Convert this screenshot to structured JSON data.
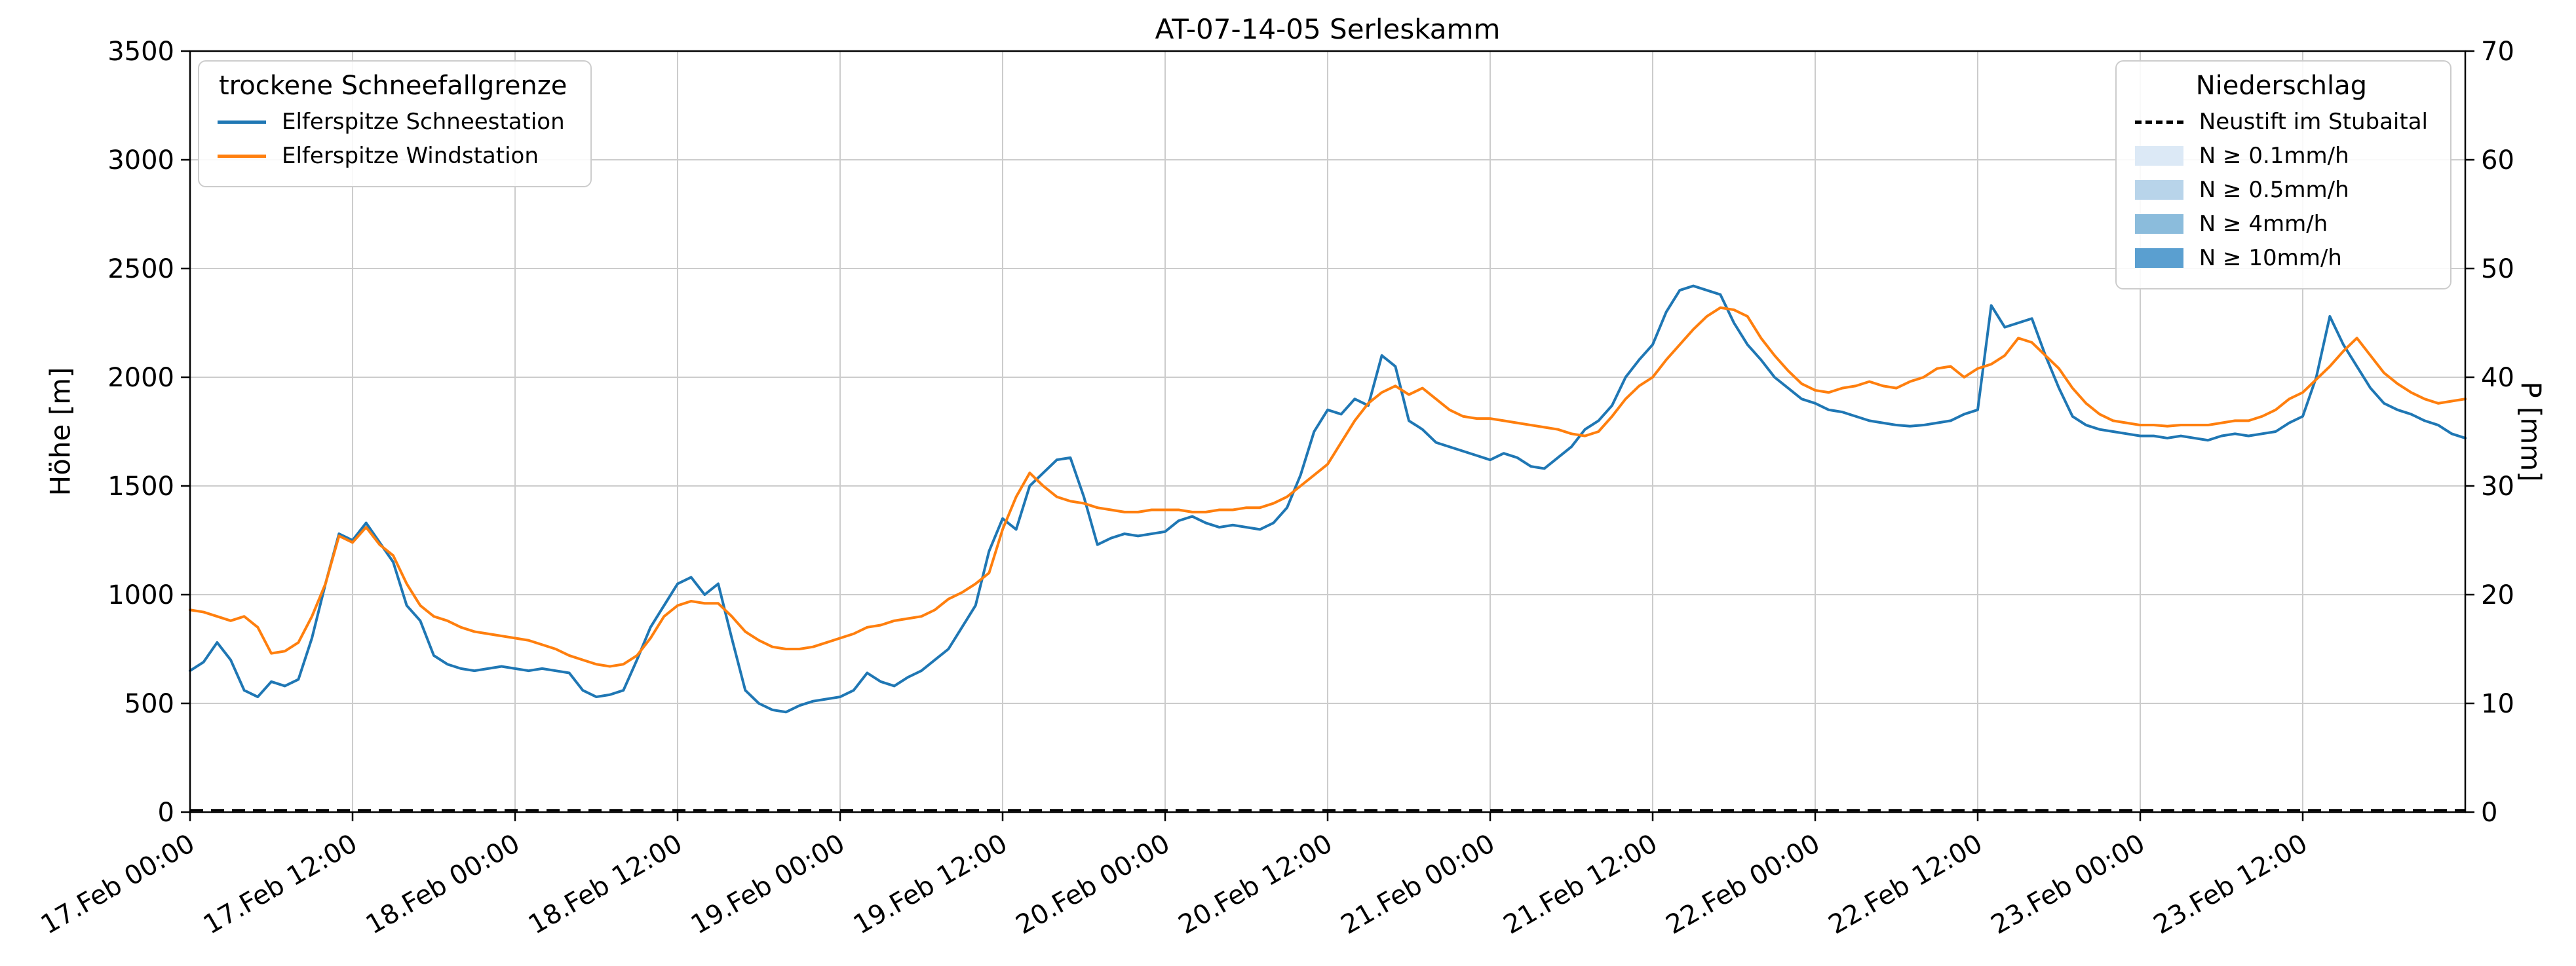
{
  "chart_data": {
    "type": "line",
    "title": "AT-07-14-05 Serleskamm",
    "xlabel": "",
    "ylabel_left": "Höhe [m]",
    "ylabel_right": "P [mm]",
    "grid": true,
    "y_left": {
      "min": 0,
      "max": 3500,
      "step": 500
    },
    "y_right": {
      "min": 0,
      "max": 70,
      "step": 10
    },
    "x": {
      "min_hour": 0,
      "max_hour": 168,
      "tick_step_hours": 12,
      "resolution_hours": 1,
      "tick_labels": [
        "17.Feb 00:00",
        "17.Feb 12:00",
        "18.Feb 00:00",
        "18.Feb 12:00",
        "19.Feb 00:00",
        "19.Feb 12:00",
        "20.Feb 00:00",
        "20.Feb 12:00",
        "21.Feb 00:00",
        "21.Feb 12:00",
        "22.Feb 00:00",
        "22.Feb 12:00",
        "23.Feb 00:00",
        "23.Feb 12:00"
      ]
    },
    "series": [
      {
        "name": "Elferspitze Schneestation",
        "color": "#1f77b4",
        "axis": "left",
        "values": [
          650,
          690,
          780,
          700,
          560,
          530,
          600,
          580,
          610,
          800,
          1050,
          1280,
          1250,
          1330,
          1240,
          1150,
          950,
          880,
          720,
          680,
          660,
          650,
          660,
          670,
          660,
          650,
          660,
          650,
          640,
          560,
          530,
          540,
          560,
          700,
          850,
          950,
          1050,
          1080,
          1000,
          1050,
          800,
          560,
          500,
          470,
          460,
          490,
          510,
          520,
          530,
          560,
          640,
          600,
          580,
          620,
          650,
          700,
          750,
          850,
          950,
          1200,
          1350,
          1300,
          1500,
          1560,
          1620,
          1630,
          1450,
          1230,
          1260,
          1280,
          1270,
          1280,
          1290,
          1340,
          1360,
          1330,
          1310,
          1320,
          1310,
          1300,
          1330,
          1400,
          1550,
          1750,
          1850,
          1830,
          1900,
          1870,
          2100,
          2050,
          1800,
          1760,
          1700,
          1680,
          1660,
          1640,
          1620,
          1650,
          1630,
          1590,
          1580,
          1630,
          1680,
          1760,
          1800,
          1870,
          2000,
          2080,
          2150,
          2300,
          2400,
          2420,
          2400,
          2380,
          2250,
          2150,
          2080,
          2000,
          1950,
          1900,
          1880,
          1850,
          1840,
          1820,
          1800,
          1790,
          1780,
          1775,
          1780,
          1790,
          1800,
          1830,
          1850,
          2330,
          2230,
          2250,
          2270,
          2100,
          1950,
          1820,
          1780,
          1760,
          1750,
          1740,
          1730,
          1730,
          1720,
          1730,
          1720,
          1710,
          1730,
          1740,
          1730,
          1740,
          1750,
          1790,
          1820,
          2000,
          2280,
          2150,
          2050,
          1950,
          1880,
          1850,
          1830,
          1800,
          1780,
          1740,
          1720
        ]
      },
      {
        "name": "Elferspitze Windstation",
        "color": "#ff7f0e",
        "axis": "left",
        "values": [
          930,
          920,
          900,
          880,
          900,
          850,
          730,
          740,
          780,
          900,
          1050,
          1270,
          1240,
          1310,
          1230,
          1180,
          1050,
          950,
          900,
          880,
          850,
          830,
          820,
          810,
          800,
          790,
          770,
          750,
          720,
          700,
          680,
          670,
          680,
          720,
          800,
          900,
          950,
          970,
          960,
          960,
          900,
          830,
          790,
          760,
          750,
          750,
          760,
          780,
          800,
          820,
          850,
          860,
          880,
          890,
          900,
          930,
          980,
          1010,
          1050,
          1100,
          1300,
          1450,
          1560,
          1500,
          1450,
          1430,
          1420,
          1400,
          1390,
          1380,
          1380,
          1390,
          1390,
          1390,
          1380,
          1380,
          1390,
          1390,
          1400,
          1400,
          1420,
          1450,
          1500,
          1550,
          1600,
          1700,
          1800,
          1880,
          1930,
          1960,
          1920,
          1950,
          1900,
          1850,
          1820,
          1810,
          1810,
          1800,
          1790,
          1780,
          1770,
          1760,
          1740,
          1730,
          1750,
          1820,
          1900,
          1960,
          2000,
          2080,
          2150,
          2220,
          2280,
          2320,
          2310,
          2280,
          2180,
          2100,
          2030,
          1970,
          1940,
          1930,
          1950,
          1960,
          1980,
          1960,
          1950,
          1980,
          2000,
          2040,
          2050,
          2000,
          2040,
          2060,
          2100,
          2180,
          2160,
          2100,
          2040,
          1950,
          1880,
          1830,
          1800,
          1790,
          1780,
          1780,
          1775,
          1780,
          1780,
          1780,
          1790,
          1800,
          1800,
          1820,
          1850,
          1900,
          1930,
          1990,
          2050,
          2120,
          2180,
          2100,
          2020,
          1970,
          1930,
          1900,
          1880,
          1890,
          1900
        ]
      },
      {
        "name": "Neustift im Stubaital",
        "color": "#000000",
        "style": "dashed",
        "axis": "right",
        "values_constant": 0
      }
    ],
    "legend_left": {
      "title": "trockene Schneefallgrenze",
      "items": [
        {
          "label": "Elferspitze Schneestation",
          "swatch": "line",
          "color": "#1f77b4"
        },
        {
          "label": "Elferspitze Windstation",
          "swatch": "line",
          "color": "#ff7f0e"
        }
      ]
    },
    "legend_right": {
      "title": "Niederschlag",
      "items": [
        {
          "label": "Neustift im Stubaital",
          "swatch": "dashed-line",
          "color": "#000000"
        },
        {
          "label": "N ≥ 0.1mm/h",
          "swatch": "patch",
          "color": "#dce9f6"
        },
        {
          "label": "N ≥ 0.5mm/h",
          "swatch": "patch",
          "color": "#b8d4ea"
        },
        {
          "label": "N ≥ 4mm/h",
          "swatch": "patch",
          "color": "#8bbcdc"
        },
        {
          "label": "N ≥ 10mm/h",
          "swatch": "patch",
          "color": "#5a9fd0"
        }
      ]
    },
    "colors": {
      "grid": "#cccccc",
      "spine": "#000000"
    }
  }
}
